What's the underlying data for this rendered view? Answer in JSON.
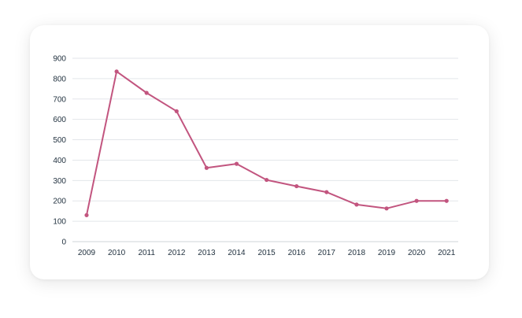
{
  "chart_data": {
    "type": "line",
    "title": "",
    "xlabel": "",
    "ylabel": "",
    "categories": [
      "2009",
      "2010",
      "2011",
      "2012",
      "2013",
      "2014",
      "2015",
      "2016",
      "2017",
      "2018",
      "2019",
      "2020",
      "2021"
    ],
    "series": [
      {
        "values": [
          130,
          835,
          730,
          640,
          362,
          382,
          303,
          272,
          243,
          182,
          163,
          200,
          200
        ],
        "color": "#c2557f"
      }
    ],
    "ylim": [
      0,
      900
    ],
    "yticks": [
      0,
      100,
      200,
      300,
      400,
      500,
      600,
      700,
      800,
      900
    ],
    "grid": true,
    "legend": "none"
  }
}
